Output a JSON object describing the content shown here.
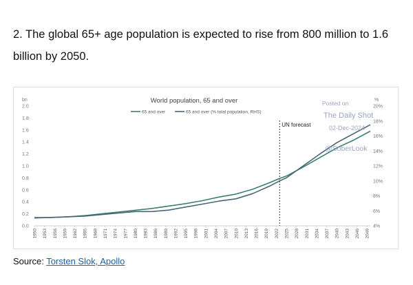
{
  "headline": "2. The global 65+ age population is expected to rise from 800 million to 1.6 billion by 2050.",
  "source": {
    "label": "Source: ",
    "link_text": "Torsten Slok, Apollo"
  },
  "watermark": {
    "line1": "Posted on",
    "line2": "The Daily Shot",
    "line3": "02-Dec-2024",
    "line4": "@SoberLook"
  },
  "colors": {
    "series1": "#3a7f6e",
    "series2": "#4a6473",
    "forecast_line": "#333333"
  },
  "chart_data": {
    "type": "line",
    "title": "World population, 65 and over",
    "ylabel_left": "bn",
    "ylabel_right": "%",
    "ylim_left": [
      0.0,
      2.0
    ],
    "ylim_right": [
      4,
      20
    ],
    "yticks_left": [
      "0.0",
      "0.2",
      "0.4",
      "0.6",
      "0.8",
      "1.0",
      "1.2",
      "1.4",
      "1.6",
      "1.8",
      "2.0"
    ],
    "yticks_right": [
      "4%",
      "6%",
      "8%",
      "10%",
      "12%",
      "14%",
      "16%",
      "18%",
      "20%"
    ],
    "xticks": [
      "1950",
      "1953",
      "1956",
      "1959",
      "1962",
      "1965",
      "1968",
      "1971",
      "1974",
      "1977",
      "1980",
      "1983",
      "1986",
      "1989",
      "1992",
      "1995",
      "1998",
      "2001",
      "2004",
      "2007",
      "2010",
      "2013",
      "2016",
      "2019",
      "2022",
      "2025",
      "2028",
      "2031",
      "2034",
      "2037",
      "2040",
      "2043",
      "2046",
      "2049"
    ],
    "annotation": {
      "text": "UN forecast",
      "x": 2023
    },
    "series": [
      {
        "name": "65 and over",
        "axis": "left",
        "x": [
          1950,
          1955,
          1960,
          1965,
          1970,
          1975,
          1980,
          1985,
          1990,
          1995,
          2000,
          2005,
          2010,
          2015,
          2020,
          2023,
          2025,
          2030,
          2035,
          2040,
          2045,
          2050
        ],
        "values": [
          0.13,
          0.14,
          0.15,
          0.17,
          0.2,
          0.23,
          0.26,
          0.29,
          0.33,
          0.37,
          0.42,
          0.48,
          0.53,
          0.61,
          0.72,
          0.79,
          0.83,
          0.98,
          1.14,
          1.3,
          1.43,
          1.58
        ]
      },
      {
        "name": "65 and over (% total population, RHS)",
        "axis": "right",
        "x": [
          1950,
          1955,
          1960,
          1965,
          1970,
          1975,
          1980,
          1985,
          1990,
          1995,
          2000,
          2005,
          2010,
          2015,
          2020,
          2023,
          2025,
          2030,
          2035,
          2040,
          2045,
          2050
        ],
        "values": [
          5.1,
          5.1,
          5.2,
          5.3,
          5.5,
          5.7,
          5.9,
          5.9,
          6.1,
          6.5,
          6.9,
          7.3,
          7.6,
          8.3,
          9.3,
          10.0,
          10.4,
          12.0,
          13.6,
          15.1,
          16.3,
          17.5
        ]
      }
    ]
  }
}
